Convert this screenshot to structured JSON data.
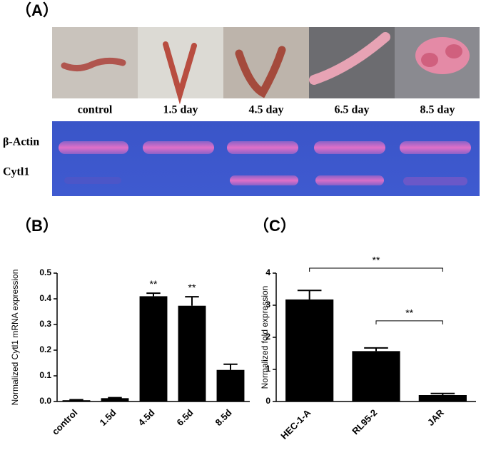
{
  "panel_a": {
    "label": "（A）",
    "samples": [
      "control",
      "1.5 day",
      "4.5 day",
      "6.5 day",
      "8.5 day"
    ],
    "bands": [
      "β-Actin",
      "Cytl1"
    ]
  },
  "chart_data": [
    {
      "type": "bar",
      "panel_label": "（B）",
      "ylabel": "Normalized Cytl1 mRNA expression",
      "categories": [
        "control",
        "1.5d",
        "4.5d",
        "6.5d",
        "8.5d"
      ],
      "values": [
        0.005,
        0.013,
        0.41,
        0.373,
        0.123
      ],
      "errors": [
        0.002,
        0.002,
        0.012,
        0.035,
        0.022
      ],
      "significance": [
        null,
        null,
        "**",
        "**",
        null
      ],
      "color": "#000000",
      "ylim": [
        0,
        0.5
      ],
      "yticks": [
        {
          "value": 0,
          "label": "0.0"
        },
        0.1,
        0.2,
        0.3,
        0.4,
        0.5
      ]
    },
    {
      "type": "bar",
      "panel_label": "（C）",
      "ylabel": "Normalized fold expression",
      "categories": [
        "HEC-1-A",
        "RL95-2",
        "JAR"
      ],
      "values": [
        3.18,
        1.57,
        0.2
      ],
      "errors": [
        0.28,
        0.1,
        0.05
      ],
      "comparisons": [
        {
          "label": "**",
          "between": [
            "HEC-1-A",
            "JAR"
          ]
        },
        {
          "label": "**",
          "between": [
            "RL95-2",
            "JAR"
          ]
        }
      ],
      "color": "#000000",
      "ylim": [
        0,
        4
      ],
      "yticks": [
        0,
        1,
        2,
        3,
        4
      ]
    }
  ]
}
